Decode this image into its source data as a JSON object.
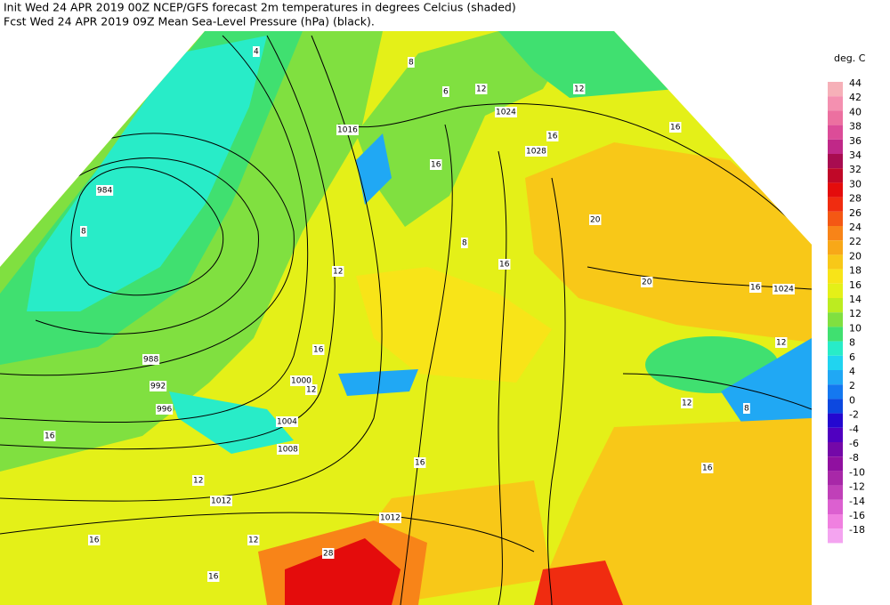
{
  "header": {
    "line1": "Init  Wed 24 APR 2019 00Z  NCEP/GFS forecast 2m temperatures in degrees Celcius (shaded)",
    "line2": "Fcst Wed 24 APR 2019 09Z  Mean Sea-Level Pressure (hPa) (black)."
  },
  "legend": {
    "title": "deg. C",
    "levels": [
      {
        "value": 44,
        "color": "#f6b0b8"
      },
      {
        "value": 42,
        "color": "#f490b0"
      },
      {
        "value": 40,
        "color": "#ec70a0"
      },
      {
        "value": 38,
        "color": "#dc4c98"
      },
      {
        "value": 36,
        "color": "#c02888"
      },
      {
        "value": 34,
        "color": "#a80c50"
      },
      {
        "value": 32,
        "color": "#c00828"
      },
      {
        "value": 30,
        "color": "#e40c0c"
      },
      {
        "value": 28,
        "color": "#f02c10"
      },
      {
        "value": 26,
        "color": "#f45814"
      },
      {
        "value": 24,
        "color": "#f88418"
      },
      {
        "value": 22,
        "color": "#f8a818"
      },
      {
        "value": 20,
        "color": "#f8c818"
      },
      {
        "value": 18,
        "color": "#f8e418"
      },
      {
        "value": 16,
        "color": "#e4f018"
      },
      {
        "value": 14,
        "color": "#bcec20"
      },
      {
        "value": 12,
        "color": "#80e040"
      },
      {
        "value": 10,
        "color": "#40e070"
      },
      {
        "value": 8,
        "color": "#28ecc8"
      },
      {
        "value": 6,
        "color": "#20d4f0"
      },
      {
        "value": 4,
        "color": "#20a8f4"
      },
      {
        "value": 2,
        "color": "#1478f0"
      },
      {
        "value": 0,
        "color": "#0c48e0"
      },
      {
        "value": -2,
        "color": "#2408d0"
      },
      {
        "value": -4,
        "color": "#5000c0"
      },
      {
        "value": -6,
        "color": "#7408a8"
      },
      {
        "value": -8,
        "color": "#9010a0"
      },
      {
        "value": -10,
        "color": "#a828a8"
      },
      {
        "value": -12,
        "color": "#c040b8"
      },
      {
        "value": -14,
        "color": "#dc60d0"
      },
      {
        "value": -16,
        "color": "#f080e0"
      },
      {
        "value": -18,
        "color": "#f4a4f0"
      }
    ]
  },
  "isobar_labels": [
    1016,
    1024,
    1028,
    984,
    988,
    992,
    996,
    1000,
    1004,
    1008,
    1012,
    1012,
    1024
  ],
  "temperature_labels": [
    4,
    8,
    6,
    12,
    12,
    16,
    16,
    20,
    20,
    16,
    8,
    12,
    16,
    12,
    16,
    12,
    16,
    16,
    12,
    16,
    28,
    12,
    16,
    8,
    12,
    16,
    16,
    8
  ]
}
